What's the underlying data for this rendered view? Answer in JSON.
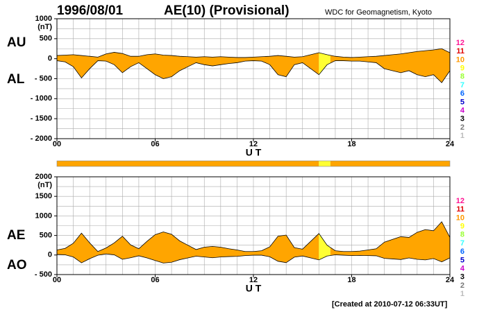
{
  "header": {
    "date": "1996/08/01",
    "title": "AE(10) (Provisional)",
    "source": "WDC for Geomagnetism, Kyoto"
  },
  "footer": "[Created at 2010-07-12 06:33UT]",
  "station_coverage": [
    {
      "range": [
        0,
        16
      ],
      "color": "#ffa500"
    },
    {
      "range": [
        16,
        16.7
      ],
      "color": "#ffff33"
    },
    {
      "range": [
        16.7,
        24
      ],
      "color": "#ffa500"
    }
  ],
  "level_legend": [
    {
      "label": "12",
      "color": "#ff1493"
    },
    {
      "label": "11",
      "color": "#e00000"
    },
    {
      "label": "10",
      "color": "#ff9900"
    },
    {
      "label": "9",
      "color": "#ffff00"
    },
    {
      "label": "8",
      "color": "#99ff33"
    },
    {
      "label": "7",
      "color": "#33ffff"
    },
    {
      "label": "6",
      "color": "#0066ff"
    },
    {
      "label": "5",
      "color": "#0000cc"
    },
    {
      "label": "4",
      "color": "#cc00cc"
    },
    {
      "label": "3",
      "color": "#000000"
    },
    {
      "label": "2",
      "color": "#777777"
    },
    {
      "label": "1",
      "color": "#bbbbbb"
    }
  ],
  "chart_data": [
    {
      "type": "band",
      "unit": "(nT)",
      "xlabel": "U T",
      "xlim": [
        0,
        24
      ],
      "ylim": [
        -2000,
        1000
      ],
      "xticks": [
        {
          "value": 0,
          "label": "00"
        },
        {
          "value": 6,
          "label": "06"
        },
        12,
        18,
        24
      ],
      "yticks": [
        1000,
        500,
        0,
        {
          "value": -500,
          "label": "- 500"
        },
        {
          "value": -1000,
          "label": "- 1000"
        },
        {
          "value": -1500,
          "label": "- 1500"
        },
        {
          "value": -2000,
          "label": "- 2000"
        }
      ],
      "grid": true,
      "xgrid_step": 1,
      "ygrid_step": 250,
      "x": [
        0,
        0.5,
        1,
        1.5,
        2,
        2.5,
        3,
        3.5,
        4,
        4.5,
        5,
        5.5,
        6,
        6.5,
        7,
        7.5,
        8,
        8.5,
        9,
        9.5,
        10,
        10.5,
        11,
        11.5,
        12,
        12.5,
        13,
        13.5,
        14,
        14.5,
        15,
        15.5,
        16,
        16.5,
        17,
        17.5,
        18,
        18.5,
        19,
        19.5,
        20,
        20.5,
        21,
        21.5,
        22,
        22.5,
        23,
        23.5,
        24
      ],
      "series": [
        {
          "name": "AU",
          "color": "#000000",
          "values": [
            80,
            90,
            100,
            80,
            60,
            40,
            120,
            160,
            130,
            60,
            60,
            100,
            120,
            90,
            80,
            60,
            50,
            40,
            50,
            40,
            50,
            40,
            30,
            30,
            40,
            50,
            60,
            80,
            60,
            40,
            50,
            100,
            150,
            100,
            60,
            40,
            30,
            40,
            50,
            60,
            80,
            100,
            120,
            150,
            180,
            200,
            220,
            250,
            150
          ]
        },
        {
          "name": "AL",
          "color": "#000000",
          "values": [
            -50,
            -80,
            -200,
            -480,
            -250,
            -50,
            -60,
            -150,
            -350,
            -200,
            -100,
            -250,
            -400,
            -500,
            -450,
            -300,
            -200,
            -100,
            -150,
            -180,
            -150,
            -120,
            -100,
            -60,
            -50,
            -60,
            -150,
            -400,
            -450,
            -150,
            -100,
            -250,
            -400,
            -150,
            -50,
            -50,
            -60,
            -60,
            -80,
            -100,
            -250,
            -300,
            -350,
            -300,
            -400,
            -450,
            -400,
            -600,
            -300
          ]
        }
      ]
    },
    {
      "type": "band",
      "unit": "(nT)",
      "xlabel": "U T",
      "xlim": [
        0,
        24
      ],
      "ylim": [
        -500,
        2000
      ],
      "xticks": [
        {
          "value": 0,
          "label": "00"
        },
        {
          "value": 6,
          "label": "06"
        },
        12,
        18,
        24
      ],
      "yticks": [
        2000,
        1500,
        1000,
        500,
        0,
        {
          "value": -500,
          "label": "- 500"
        }
      ],
      "grid": true,
      "xgrid_step": 1,
      "ygrid_step": 250,
      "x": [
        0,
        0.5,
        1,
        1.5,
        2,
        2.5,
        3,
        3.5,
        4,
        4.5,
        5,
        5.5,
        6,
        6.5,
        7,
        7.5,
        8,
        8.5,
        9,
        9.5,
        10,
        10.5,
        11,
        11.5,
        12,
        12.5,
        13,
        13.5,
        14,
        14.5,
        15,
        15.5,
        16,
        16.5,
        17,
        17.5,
        18,
        18.5,
        19,
        19.5,
        20,
        20.5,
        21,
        21.5,
        22,
        22.5,
        23,
        23.5,
        24
      ],
      "series": [
        {
          "name": "AE",
          "color": "#000000",
          "values": [
            130,
            170,
            300,
            560,
            310,
            90,
            180,
            310,
            480,
            260,
            160,
            350,
            520,
            590,
            530,
            360,
            250,
            140,
            200,
            220,
            200,
            160,
            130,
            90,
            90,
            110,
            210,
            480,
            510,
            190,
            150,
            350,
            550,
            250,
            110,
            90,
            90,
            100,
            130,
            160,
            330,
            400,
            470,
            450,
            580,
            650,
            620,
            850,
            450
          ]
        },
        {
          "name": "AO",
          "color": "#000000",
          "values": [
            15,
            5,
            -50,
            -200,
            -95,
            -5,
            30,
            5,
            -110,
            -70,
            -20,
            -75,
            -140,
            -205,
            -185,
            -120,
            -75,
            -30,
            -50,
            -70,
            -50,
            -40,
            -35,
            -15,
            -5,
            -5,
            -45,
            -160,
            -195,
            -55,
            -25,
            -75,
            -125,
            -25,
            5,
            -5,
            -15,
            -10,
            -15,
            -20,
            -85,
            -100,
            -115,
            -75,
            -110,
            -125,
            -90,
            -175,
            -75
          ]
        }
      ]
    }
  ]
}
